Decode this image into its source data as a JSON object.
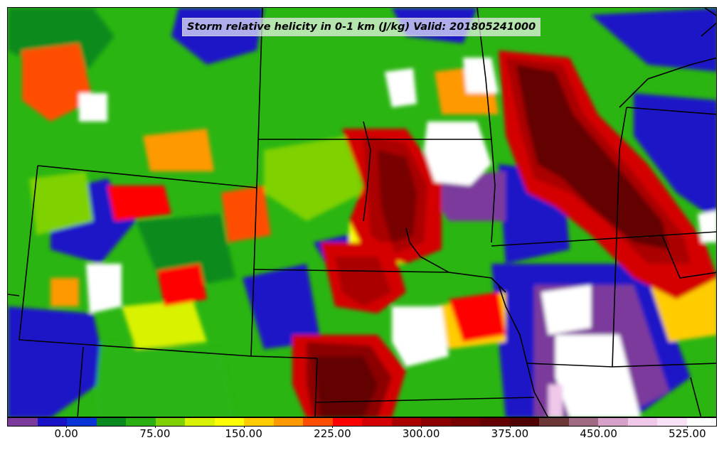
{
  "title": "Storm relative helicity in 0-1 km (J/kg) Valid: 201805241000",
  "colorbar": {
    "colors": [
      "#7b3a9c",
      "#1a12c7",
      "#0a33d6",
      "#0b8a1f",
      "#2bb014",
      "#7fd104",
      "#d9f203",
      "#ffff00",
      "#ffcc00",
      "#ff9900",
      "#ff4e00",
      "#ff0000",
      "#d40000",
      "#aa0000",
      "#8c0000",
      "#780000",
      "#640000",
      "#500000",
      "#6b3737",
      "#a06a82",
      "#d6a0c8",
      "#efc8ea",
      "#f8e0f5",
      "#ffffff"
    ],
    "tick_labels": [
      "0.00",
      "75.00",
      "150.00",
      "225.00",
      "300.00",
      "375.00",
      "450.00",
      "525.00"
    ],
    "tick_values": [
      0,
      75,
      150,
      225,
      300,
      375,
      450,
      525
    ],
    "min": -50,
    "max": 550
  },
  "field_colors": {
    "background": "#2ab512",
    "blue": "#1a12c7",
    "purple": "#7b3a9c",
    "darkgreen": "#0b8a1f",
    "lime": "#7fd104",
    "yellow": "#ffff00",
    "orange": "#ff9900",
    "red": "#ff0000",
    "darkred": "#aa0000",
    "maroon": "#640000",
    "white": "#ffffff",
    "boundary": "#000000"
  }
}
